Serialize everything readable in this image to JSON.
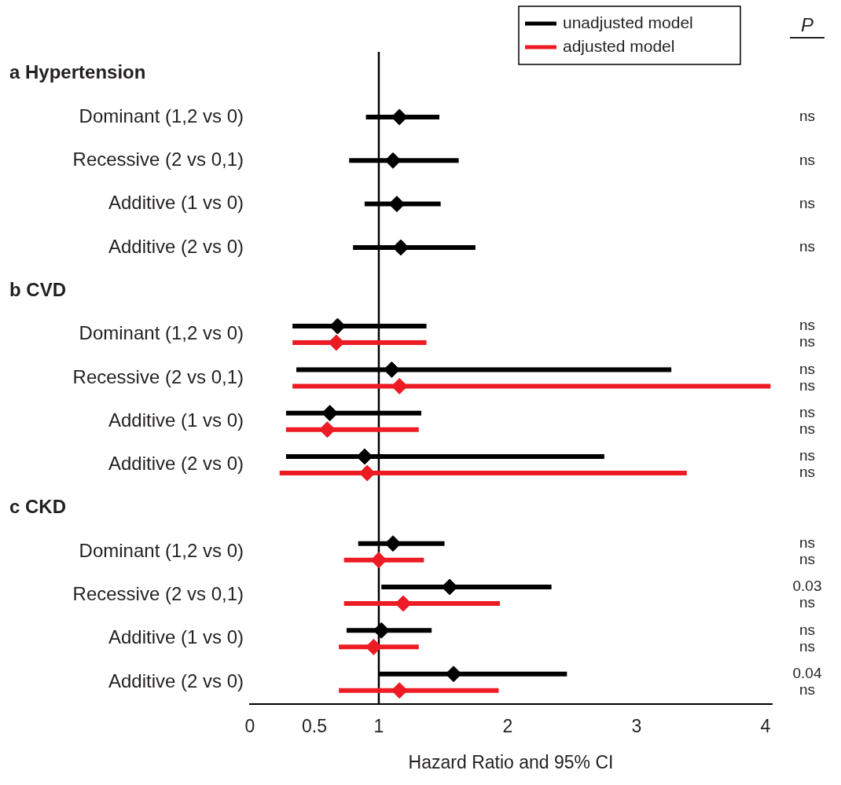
{
  "chart_data": {
    "type": "scatter",
    "orientation": "horizontal",
    "xlabel": "Hazard Ratio and 95% CI",
    "categories": [
      null,
      "Dominant (1,2 vs 0)",
      "Recessive (2 vs 0,1)",
      "Additive (1 vs 0)",
      "Additive (2 vs 0)",
      null,
      "Dominant (1,2 vs 0)",
      "Recessive (2 vs 0,1)",
      "Additive (1 vs 0)",
      "Additive (2 vs 0)",
      null,
      "Dominant (1,2 vs 0)",
      "Recessive (2 vs 0,1)",
      "Additive (1 vs 0)",
      "Additive (2 vs 0)"
    ],
    "series": [
      {
        "name": "unadjusted model",
        "color": "#000000",
        "values": [
          null,
          1.16,
          1.11,
          1.14,
          1.17,
          null,
          0.68,
          1.1,
          0.62,
          0.89,
          null,
          1.11,
          1.55,
          1.02,
          1.58
        ],
        "errors": [
          null,
          [
            0.9,
            1.47
          ],
          [
            0.77,
            1.62
          ],
          [
            0.89,
            1.48
          ],
          [
            0.8,
            1.75
          ],
          null,
          [
            0.33,
            1.37
          ],
          [
            0.36,
            3.27
          ],
          [
            0.28,
            1.33
          ],
          [
            0.28,
            2.75
          ],
          null,
          [
            0.84,
            1.51
          ],
          [
            1.02,
            2.34
          ],
          [
            0.75,
            1.41
          ],
          [
            1.0,
            2.46
          ]
        ]
      },
      {
        "name": "adjusted model",
        "color": "#ed1c24",
        "values": [
          null,
          null,
          null,
          null,
          null,
          null,
          0.67,
          1.16,
          0.6,
          0.91,
          null,
          1.0,
          1.19,
          0.96,
          1.16
        ],
        "errors": [
          null,
          null,
          null,
          null,
          null,
          null,
          [
            0.33,
            1.37
          ],
          [
            0.33,
            4.04
          ],
          [
            0.28,
            1.31
          ],
          [
            0.23,
            3.39
          ],
          null,
          [
            0.73,
            1.35
          ],
          [
            0.73,
            1.94
          ],
          [
            0.69,
            1.31
          ],
          [
            0.69,
            1.93
          ]
        ]
      }
    ],
    "xlim": [
      0,
      4.05
    ],
    "xticks": [
      0,
      0.5,
      1,
      2,
      3,
      4
    ],
    "ref_lines": [
      {
        "axis": "x",
        "value": 1,
        "color": "#000000"
      }
    ],
    "annotations": [
      "P",
      "a Hypertension",
      "ns",
      "ns",
      "ns",
      "ns",
      "b CVD",
      "ns",
      "ns",
      "ns",
      "ns",
      "ns",
      "ns",
      "ns",
      "ns",
      "c CKD",
      "ns",
      "ns",
      "0.03",
      "ns",
      "ns",
      "ns",
      "0.04",
      "ns"
    ],
    "marker": "diamond",
    "legend": "top right",
    "grid": false
  }
}
